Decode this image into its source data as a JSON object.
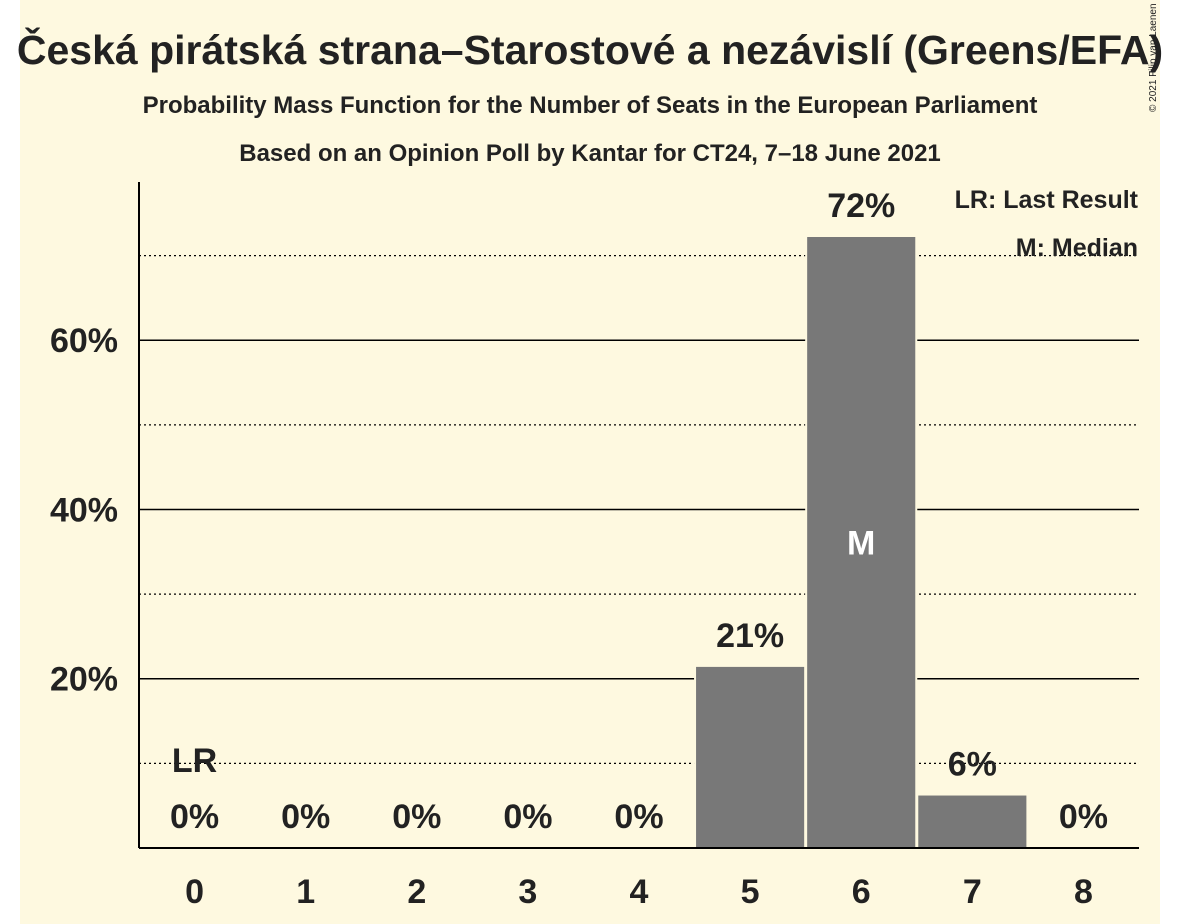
{
  "header": {
    "title": "Česká pirátská strana–Starostové a nezávislí (Greens/EFA)",
    "subtitle": "Probability Mass Function for the Number of Seats in the European Parliament",
    "subtitle2": "Based on an Opinion Poll by Kantar for CT24, 7–18 June 2021",
    "copyright": "© 2021 Filip van Laenen"
  },
  "legend": {
    "lr": "LR: Last Result",
    "median": "M: Median"
  },
  "colors": {
    "background": "#fef9e0",
    "bar": "#787878",
    "median_label": "#ffffff",
    "text": "#222222"
  },
  "chart_data": {
    "type": "bar",
    "title": "Česká pirátská strana–Starostové a nezávislí (Greens/EFA)",
    "subtitle": "Probability Mass Function for the Number of Seats in the European Parliament",
    "categories": [
      "0",
      "1",
      "2",
      "3",
      "4",
      "5",
      "6",
      "7",
      "8"
    ],
    "values": [
      0,
      0,
      0,
      0,
      0,
      21.4,
      72.2,
      6.2,
      0
    ],
    "value_labels": [
      "0%",
      "0%",
      "0%",
      "0%",
      "0%",
      "21%",
      "72%",
      "6%",
      "0%"
    ],
    "ylim": [
      0,
      78.7
    ],
    "yticks_major": [
      20,
      40,
      60
    ],
    "ytick_labels": [
      "20%",
      "40%",
      "60%"
    ],
    "yticks_minor": [
      10,
      30,
      50,
      70
    ],
    "grid": true,
    "last_result_index": 0,
    "last_result_label": "LR",
    "median_index": 6,
    "median_label": "M",
    "legend_position": "top-right"
  }
}
